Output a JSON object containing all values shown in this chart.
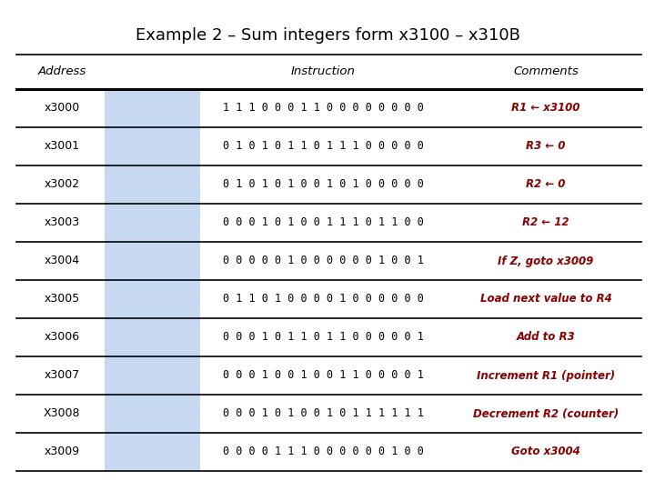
{
  "title": "Example 2 – Sum integers form x3100 – x310B",
  "rows": [
    {
      "addr": "x3000",
      "bits": "1 1 1 0 0 0 1 1 0 0 0 0 0 0 0 0",
      "comment": "R1 ← x3100"
    },
    {
      "addr": "x3001",
      "bits": "0 1 0 1 0 1 1 0 1 1 1 0 0 0 0 0",
      "comment": "R3 ← 0"
    },
    {
      "addr": "x3002",
      "bits": "0 1 0 1 0 1 0 0 1 0 1 0 0 0 0 0",
      "comment": "R2 ← 0"
    },
    {
      "addr": "x3003",
      "bits": "0 0 0 1 0 1 0 0 1 1 1 0 1 1 0 0",
      "comment": "R2 ← 12"
    },
    {
      "addr": "x3004",
      "bits": "0 0 0 0 0 1 0 0 0 0 0 0 1 0 0 1",
      "comment": "If Z, goto x3009"
    },
    {
      "addr": "x3005",
      "bits": "0 1 1 0 1 0 0 0 0 1 0 0 0 0 0 0",
      "comment": "Load next value to R4"
    },
    {
      "addr": "x3006",
      "bits": "0 0 0 1 0 1 1 0 1 1 0 0 0 0 0 1",
      "comment": "Add to R3"
    },
    {
      "addr": "x3007",
      "bits": "0 0 0 1 0 0 1 0 0 1 1 0 0 0 0 1",
      "comment": "Increment R1 (pointer)"
    },
    {
      "addr": "X3008",
      "bits": "0 0 0 1 0 1 0 0 1 0 1 1 1 1 1 1",
      "comment": "Decrement R2 (counter)"
    },
    {
      "addr": "x3009",
      "bits": "0 0 0 0 1 1 1 0 0 0 0 0 0 1 0 0",
      "comment": "Goto x3004"
    }
  ],
  "bg_color": "#ffffff",
  "highlight_color": "#c6d9f1",
  "comment_color": "#8b0000",
  "title_color": "#000000",
  "header_color": "#000000",
  "addr_color": "#000000",
  "bits_color": "#000000"
}
